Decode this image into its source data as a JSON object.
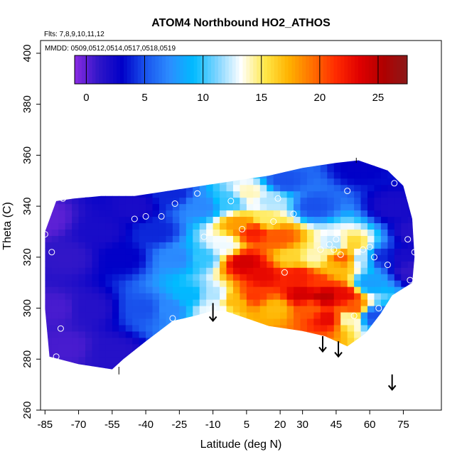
{
  "chart_data": {
    "type": "heatmap",
    "title": "ATOM4 Northbound HO2_ATHOS",
    "annotations": [
      "Flts: 7,8,9,10,11,12",
      "MMDD: 0509,0512,0514,0517,0518,0519"
    ],
    "xlabel": "Latitude (deg N)",
    "ylabel": "Theta (C)",
    "xlim": [
      -87,
      92
    ],
    "ylim": [
      260,
      405
    ],
    "x_ticks": [
      -85,
      -70,
      -55,
      -40,
      -25,
      -10,
      5,
      20,
      30,
      45,
      60,
      75
    ],
    "y_ticks": [
      260,
      280,
      300,
      320,
      340,
      360,
      380,
      400
    ],
    "colorbar": {
      "position": "top inset",
      "range": [
        -1,
        27.5
      ],
      "ticks": [
        0,
        5,
        10,
        15,
        20,
        25
      ],
      "colors": [
        "#8a2be2",
        "#3016c8",
        "#0000c8",
        "#1a55ee",
        "#2c8dff",
        "#00bbff",
        "#7fd4ff",
        "#ffffff",
        "#ffe84a",
        "#ffb300",
        "#ff7000",
        "#ff2a00",
        "#e00000",
        "#b00000",
        "#8b1a1a"
      ]
    },
    "field_boundary": [
      [
        -85,
        330
      ],
      [
        -80,
        342
      ],
      [
        -72,
        343
      ],
      [
        -60,
        344
      ],
      [
        -45,
        344
      ],
      [
        -30,
        346
      ],
      [
        -15,
        348
      ],
      [
        0,
        350
      ],
      [
        15,
        352
      ],
      [
        30,
        355
      ],
      [
        45,
        357
      ],
      [
        55,
        358
      ],
      [
        68,
        354
      ],
      [
        75,
        348
      ],
      [
        79,
        335
      ],
      [
        80,
        320
      ],
      [
        79,
        310
      ],
      [
        70,
        305
      ],
      [
        65,
        298
      ],
      [
        58,
        290
      ],
      [
        50,
        285
      ],
      [
        40,
        289
      ],
      [
        30,
        291
      ],
      [
        15,
        293
      ],
      [
        5,
        296
      ],
      [
        -5,
        299
      ],
      [
        -10,
        299
      ],
      [
        -18,
        297
      ],
      [
        -28,
        295
      ],
      [
        -40,
        287
      ],
      [
        -50,
        280
      ],
      [
        -55,
        276
      ],
      [
        -70,
        278
      ],
      [
        -83,
        281
      ],
      [
        -85,
        300
      ]
    ],
    "field_anchors": [
      [
        -85,
        335,
        0
      ],
      [
        -80,
        300,
        0.5
      ],
      [
        -75,
        285,
        0.5
      ],
      [
        -75,
        320,
        1
      ],
      [
        -65,
        300,
        1.5
      ],
      [
        -60,
        330,
        2
      ],
      [
        -55,
        283,
        1.5
      ],
      [
        -50,
        320,
        3
      ],
      [
        -45,
        340,
        2
      ],
      [
        -40,
        300,
        5
      ],
      [
        -35,
        330,
        4
      ],
      [
        -30,
        300,
        7
      ],
      [
        -28,
        345,
        4
      ],
      [
        -25,
        320,
        7
      ],
      [
        -20,
        305,
        9
      ],
      [
        -15,
        340,
        7
      ],
      [
        -15,
        320,
        10
      ],
      [
        -10,
        305,
        12
      ],
      [
        -10,
        300,
        13
      ],
      [
        -5,
        325,
        13
      ],
      [
        -2,
        342,
        10
      ],
      [
        0,
        303,
        17
      ],
      [
        2,
        333,
        18
      ],
      [
        4,
        318,
        24
      ],
      [
        6,
        345,
        14
      ],
      [
        8,
        330,
        22
      ],
      [
        8,
        305,
        21
      ],
      [
        12,
        313,
        23
      ],
      [
        14,
        335,
        15
      ],
      [
        16,
        342,
        12
      ],
      [
        18,
        300,
        17
      ],
      [
        20,
        328,
        20
      ],
      [
        22,
        350,
        5
      ],
      [
        25,
        320,
        16
      ],
      [
        28,
        313,
        22
      ],
      [
        30,
        305,
        24
      ],
      [
        33,
        300,
        20
      ],
      [
        35,
        320,
        14
      ],
      [
        35,
        340,
        5
      ],
      [
        38,
        310,
        21
      ],
      [
        40,
        305,
        25
      ],
      [
        42,
        296,
        23
      ],
      [
        45,
        315,
        17
      ],
      [
        45,
        325,
        12
      ],
      [
        48,
        305,
        23
      ],
      [
        48,
        320,
        20
      ],
      [
        50,
        296,
        14
      ],
      [
        52,
        300,
        20
      ],
      [
        52,
        325,
        16
      ],
      [
        55,
        355,
        3
      ],
      [
        56,
        320,
        12
      ],
      [
        60,
        310,
        8
      ],
      [
        62,
        297,
        5
      ],
      [
        65,
        320,
        4
      ],
      [
        70,
        340,
        2
      ],
      [
        75,
        320,
        2
      ],
      [
        78,
        315,
        1
      ],
      [
        80,
        330,
        1.5
      ]
    ],
    "observations": [
      [
        -85,
        329
      ],
      [
        -82,
        322
      ],
      [
        -78,
        292
      ],
      [
        -80,
        281
      ],
      [
        -77,
        343
      ],
      [
        -45,
        335
      ],
      [
        -40,
        336
      ],
      [
        -33,
        336
      ],
      [
        -27,
        341
      ],
      [
        -28,
        296
      ],
      [
        -17,
        345
      ],
      [
        -14,
        328
      ],
      [
        -10,
        300
      ],
      [
        -2,
        342
      ],
      [
        3,
        331
      ],
      [
        17,
        334
      ],
      [
        19,
        343
      ],
      [
        22,
        314
      ],
      [
        26,
        337
      ],
      [
        38,
        323
      ],
      [
        42,
        325
      ],
      [
        44,
        323
      ],
      [
        45,
        327
      ],
      [
        47,
        321
      ],
      [
        50,
        346
      ],
      [
        53,
        297
      ],
      [
        57,
        323
      ],
      [
        60,
        324
      ],
      [
        62,
        320
      ],
      [
        64,
        300
      ],
      [
        68,
        317
      ],
      [
        71,
        349
      ],
      [
        75,
        354
      ],
      [
        77,
        327
      ],
      [
        80,
        322
      ],
      [
        78,
        311
      ]
    ],
    "arrows": [
      [
        -10,
        302,
        -10,
        295
      ],
      [
        39,
        289,
        39,
        283
      ],
      [
        46,
        287,
        46,
        281
      ],
      [
        70,
        274,
        70,
        268
      ]
    ],
    "tick_marks": [
      [
        54,
        357,
        54,
        359
      ],
      [
        -52,
        277,
        -52,
        274
      ]
    ]
  }
}
